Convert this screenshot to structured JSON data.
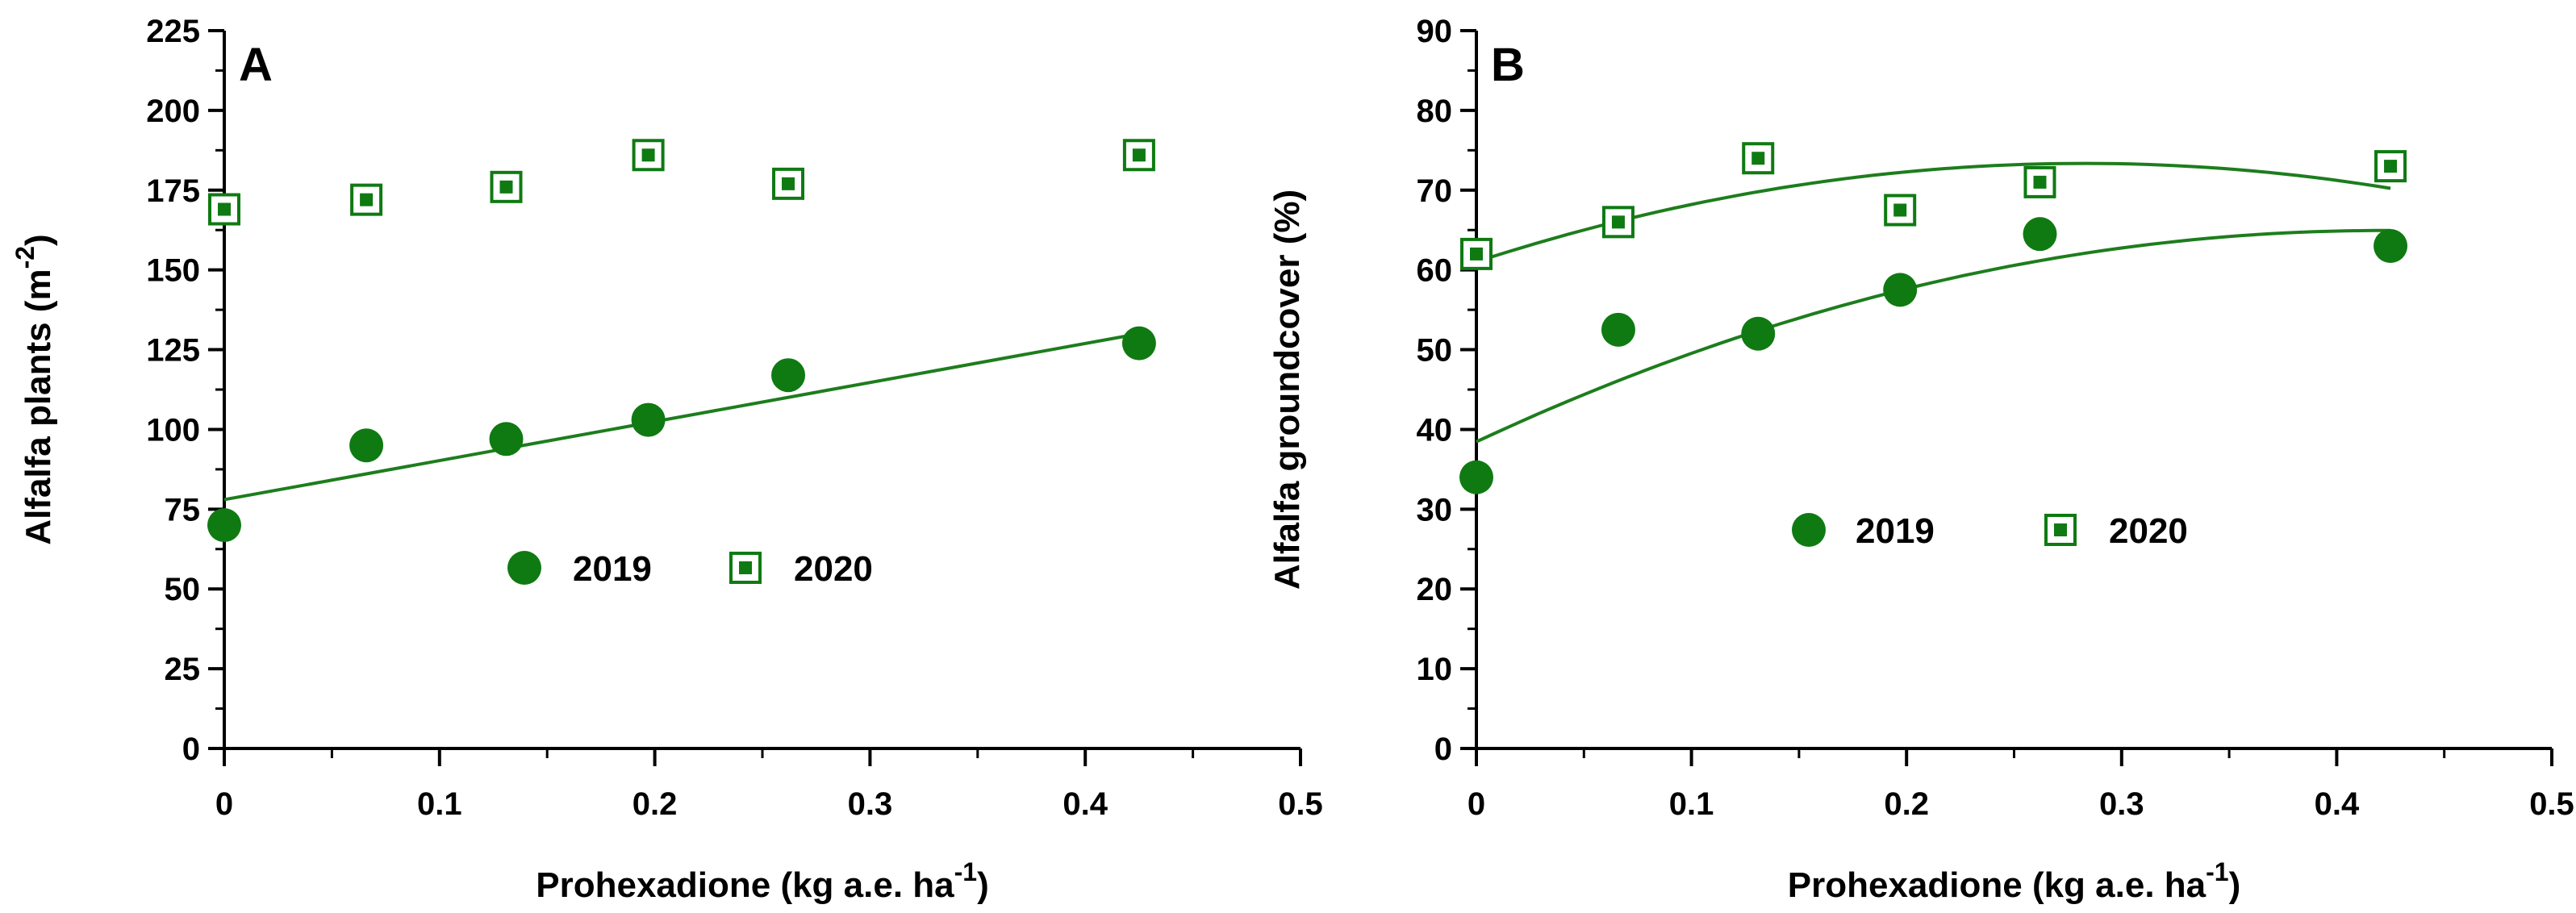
{
  "colors": {
    "marker": "#0f7a12",
    "fit_line": "#1d7d1d",
    "axis": "#000000",
    "background": "#ffffff"
  },
  "chart_data": [
    {
      "type": "scatter",
      "panel_label": "A",
      "xlabel": "Prohexadione (kg a.e. ha",
      "xlabel_sup": "-1",
      "xlabel_end": ")",
      "ylabel": "Alfalfa plants (m",
      "ylabel_sup": "-2",
      "ylabel_end": ")",
      "xlim": [
        0,
        0.5
      ],
      "ylim": [
        0,
        225
      ],
      "xticks": [
        0,
        0.1,
        0.2,
        0.3,
        0.4,
        0.5
      ],
      "xtick_labels": [
        "0",
        "0.1",
        "0.2",
        "0.3",
        "0.4",
        "0.5"
      ],
      "yticks": [
        0,
        25,
        50,
        75,
        100,
        125,
        150,
        175,
        200,
        225
      ],
      "ytick_labels": [
        "0",
        "25",
        "50",
        "75",
        "100",
        "125",
        "150",
        "175",
        "200",
        "225"
      ],
      "legend_position": "center",
      "series": [
        {
          "name": "2019",
          "marker": "filled-circle",
          "x": [
            0,
            0.066,
            0.131,
            0.197,
            0.262,
            0.425
          ],
          "y": [
            70,
            95,
            97,
            103,
            117,
            127
          ],
          "fit": {
            "type": "linear",
            "x": [
              0,
              0.425
            ],
            "y": [
              78,
              130
            ]
          }
        },
        {
          "name": "2020",
          "marker": "square-dot",
          "x": [
            0,
            0.066,
            0.131,
            0.197,
            0.262,
            0.425
          ],
          "y": [
            169,
            172,
            176,
            186,
            177,
            186
          ],
          "fit": null
        }
      ]
    },
    {
      "type": "scatter",
      "panel_label": "B",
      "xlabel": "Prohexadione (kg a.e. ha",
      "xlabel_sup": "-1",
      "xlabel_end": ")",
      "ylabel": "Alfalfa groundcover (%)",
      "ylabel_sup": "",
      "ylabel_end": "",
      "xlim": [
        0,
        0.5
      ],
      "ylim": [
        0,
        90
      ],
      "xticks": [
        0,
        0.1,
        0.2,
        0.3,
        0.4,
        0.5
      ],
      "xtick_labels": [
        "0",
        "0.1",
        "0.2",
        "0.3",
        "0.4",
        "0.5"
      ],
      "yticks": [
        0,
        10,
        20,
        30,
        40,
        50,
        60,
        70,
        80,
        90
      ],
      "ytick_labels": [
        "0",
        "10",
        "20",
        "30",
        "40",
        "50",
        "60",
        "70",
        "80",
        "90"
      ],
      "legend_position": "center-right",
      "series": [
        {
          "name": "2019",
          "marker": "filled-circle",
          "x": [
            0,
            0.066,
            0.131,
            0.197,
            0.262,
            0.425
          ],
          "y": [
            34,
            52.5,
            52,
            57.5,
            64.5,
            63
          ],
          "fit": {
            "type": "quadratic",
            "x": [
              0,
              0.1,
              0.2,
              0.3,
              0.4,
              0.425
            ],
            "y": [
              38.5,
              49.4,
              57.8,
              62.7,
              64.8,
              65
            ]
          }
        },
        {
          "name": "2020",
          "marker": "square-dot",
          "x": [
            0,
            0.066,
            0.131,
            0.197,
            0.262,
            0.425
          ],
          "y": [
            62,
            66,
            74,
            67.5,
            71,
            73
          ],
          "fit": {
            "type": "quadratic",
            "x": [
              0,
              0.1,
              0.2,
              0.3,
              0.4,
              0.425
            ],
            "y": [
              61,
              68.3,
              72.2,
              73.3,
              71.4,
              70.1
            ]
          }
        }
      ]
    }
  ]
}
